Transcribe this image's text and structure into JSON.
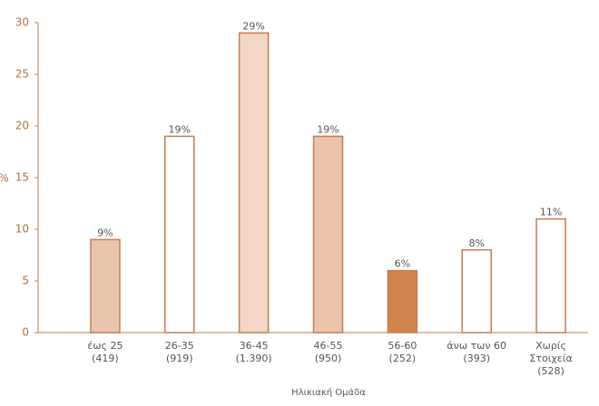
{
  "chart_data": {
    "type": "bar",
    "y_label": "%",
    "x_label": "Ηλικιακή Ομάδα",
    "categories": [
      [
        "έως 25",
        "(419)"
      ],
      [
        "26-35",
        "(919)"
      ],
      [
        "36-45",
        "(1.390)"
      ],
      [
        "46-55",
        "(950)"
      ],
      [
        "56-60",
        "(252)"
      ],
      [
        "άνω των 60",
        "(393)"
      ],
      [
        "Χωρίς",
        "Στοιχεία",
        "(528)"
      ]
    ],
    "values": [
      9,
      19,
      29,
      19,
      6,
      8,
      11
    ],
    "value_labels": [
      "9%",
      "19%",
      "29%",
      "19%",
      "6%",
      "8%",
      "11%"
    ],
    "colors": [
      "#e8c5ae",
      "#ffffff",
      "#f3d6c5",
      "#eac3aa",
      "#d0854f",
      "#ffffff",
      "#ffffff"
    ],
    "edge_color": "#c47d52",
    "ylim": [
      0,
      30
    ],
    "yticks": [
      0,
      5,
      10,
      15,
      20,
      25,
      30
    ]
  }
}
